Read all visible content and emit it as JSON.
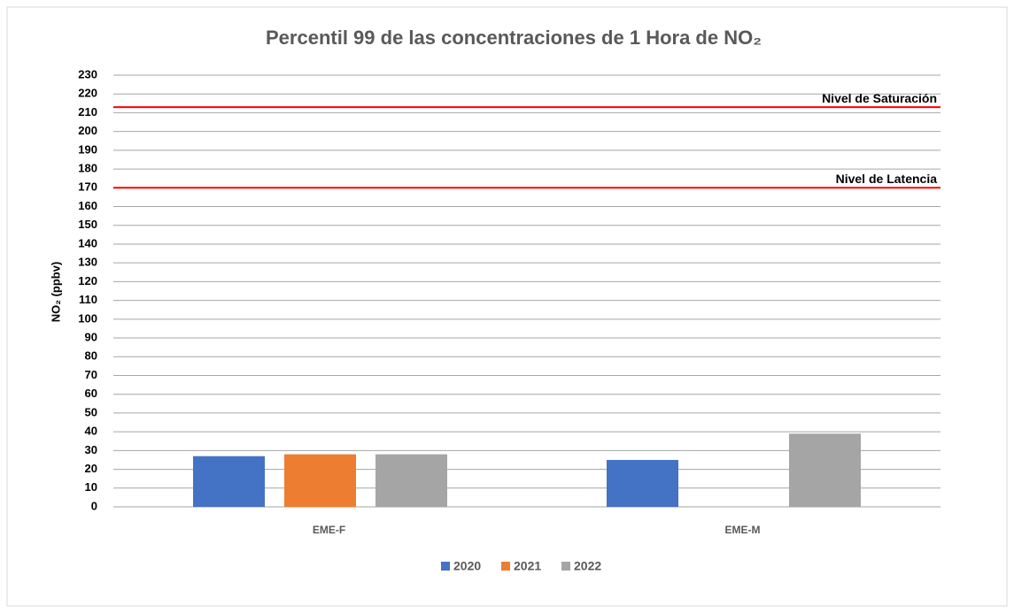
{
  "chart_data": {
    "type": "bar",
    "title": "Percentil 99 de las concentraciones de 1 Hora de NO₂",
    "y_label": "NO₂ (ppbv)",
    "categories": [
      "EME-F",
      "EME-M"
    ],
    "series": [
      {
        "name": "2020",
        "color": "#4472c4",
        "values": [
          27,
          25
        ]
      },
      {
        "name": "2021",
        "color": "#ed7d31",
        "values": [
          28,
          null
        ]
      },
      {
        "name": "2022",
        "color": "#a5a5a5",
        "values": [
          28,
          39
        ]
      }
    ],
    "reference_lines": [
      {
        "label": "Nivel de Saturación",
        "value": 213,
        "color": "#ff0000"
      },
      {
        "label": "Nivel de Latencia",
        "value": 170,
        "color": "#ff0000"
      }
    ],
    "ylim": [
      0,
      230
    ],
    "yticks": [
      0,
      10,
      20,
      30,
      40,
      50,
      60,
      70,
      80,
      90,
      100,
      110,
      120,
      130,
      140,
      150,
      160,
      170,
      180,
      190,
      200,
      210,
      220,
      230
    ],
    "grid": true,
    "legend": "bottom"
  }
}
